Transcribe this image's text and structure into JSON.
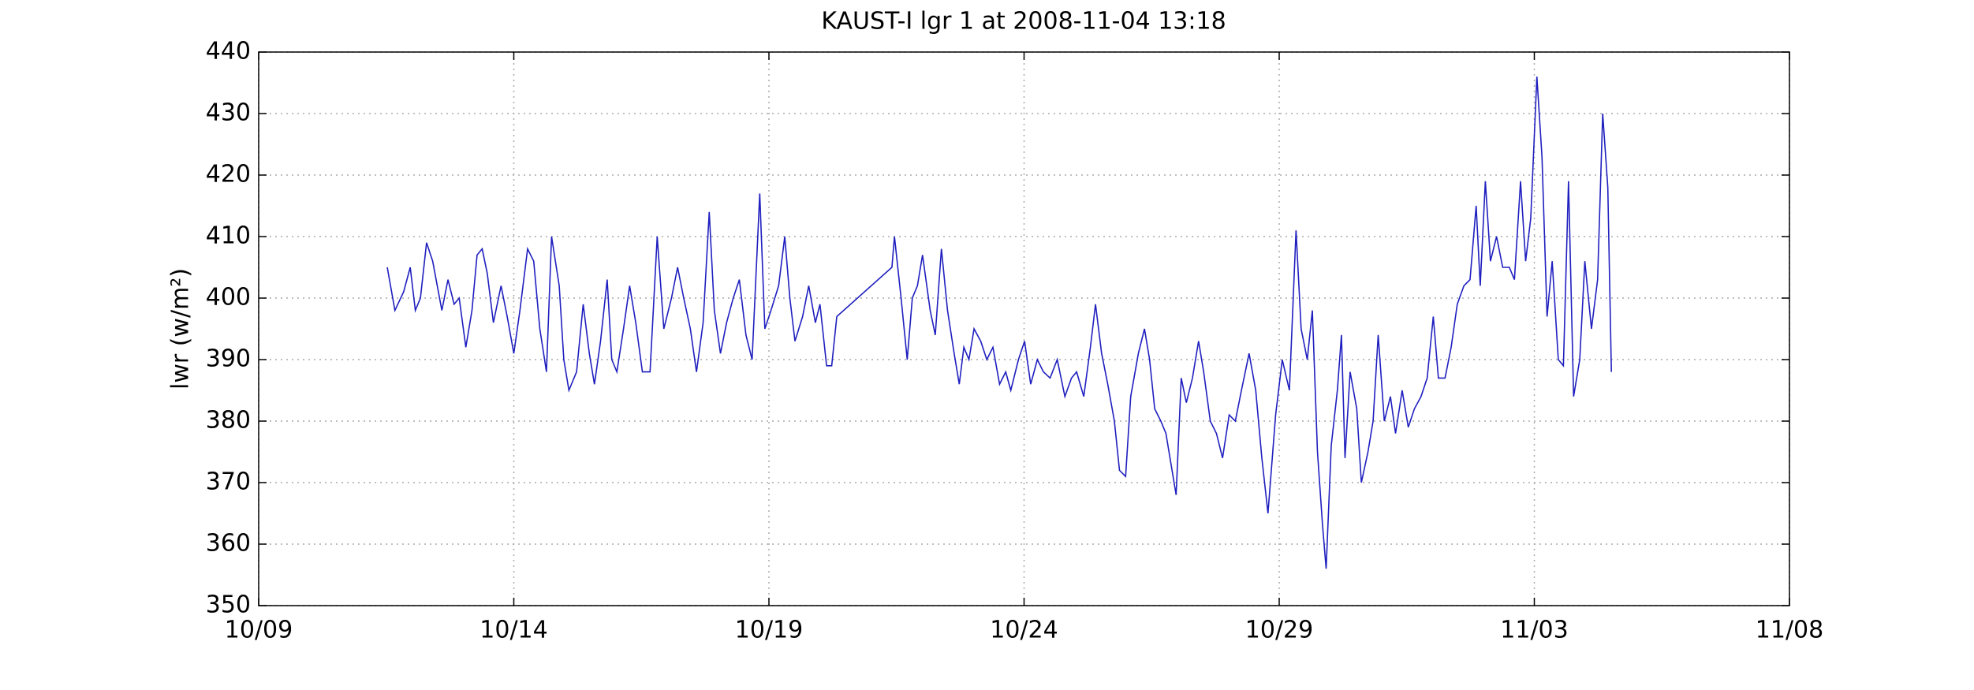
{
  "chart_data": {
    "type": "line",
    "title": "KAUST-I lgr 1 at 2008-11-04 13:18",
    "ylabel": "lwr (w/m²)",
    "x": [
      2.52,
      2.67,
      2.84,
      2.97,
      3.07,
      3.17,
      3.29,
      3.41,
      3.59,
      3.71,
      3.83,
      3.93,
      4.06,
      4.18,
      4.28,
      4.38,
      4.48,
      4.6,
      4.75,
      4.87,
      5.0,
      5.12,
      5.27,
      5.39,
      5.51,
      5.64,
      5.74,
      5.89,
      5.98,
      6.08,
      6.23,
      6.36,
      6.48,
      6.58,
      6.7,
      6.83,
      6.92,
      7.02,
      7.15,
      7.27,
      7.39,
      7.52,
      7.67,
      7.81,
      7.94,
      8.09,
      8.21,
      8.33,
      8.46,
      8.58,
      8.71,
      8.83,
      8.93,
      9.05,
      9.17,
      9.3,
      9.42,
      9.55,
      9.67,
      9.82,
      9.92,
      10.04,
      10.19,
      10.31,
      10.41,
      10.51,
      10.66,
      10.78,
      10.91,
      11.0,
      11.13,
      11.23,
      11.33,
      12.41,
      12.46,
      12.59,
      12.71,
      12.81,
      12.91,
      13.01,
      13.16,
      13.26,
      13.38,
      13.5,
      13.63,
      13.73,
      13.82,
      13.92,
      14.02,
      14.15,
      14.27,
      14.39,
      14.52,
      14.64,
      14.74,
      14.89,
      15.01,
      15.13,
      15.26,
      15.38,
      15.51,
      15.65,
      15.8,
      15.93,
      16.03,
      16.17,
      16.3,
      16.4,
      16.52,
      16.64,
      16.77,
      16.87,
      16.99,
      17.09,
      17.24,
      17.36,
      17.46,
      17.56,
      17.68,
      17.78,
      17.9,
      17.98,
      18.08,
      18.18,
      18.3,
      18.42,
      18.52,
      18.65,
      18.77,
      18.89,
      19.02,
      19.14,
      19.26,
      19.41,
      19.54,
      19.66,
      19.78,
      19.93,
      20.06,
      20.2,
      20.33,
      20.43,
      20.55,
      20.65,
      20.75,
      20.85,
      20.92,
      21.02,
      21.14,
      21.22,
      21.29,
      21.39,
      21.52,
      21.61,
      21.74,
      21.84,
      21.94,
      22.06,
      22.18,
      22.28,
      22.41,
      22.53,
      22.65,
      22.78,
      22.9,
      23.02,
      23.12,
      23.25,
      23.37,
      23.49,
      23.62,
      23.74,
      23.86,
      23.94,
      24.04,
      24.14,
      24.26,
      24.38,
      24.51,
      24.61,
      24.73,
      24.83,
      24.93,
      25.05,
      25.15,
      25.25,
      25.35,
      25.47,
      25.57,
      25.67,
      25.77,
      25.89,
      25.99,
      26.12,
      26.24,
      26.34,
      26.44,
      26.51
    ],
    "values": [
      405,
      398,
      401,
      405,
      398,
      400,
      409,
      406,
      398,
      403,
      399,
      400,
      392,
      398,
      407,
      408,
      404,
      396,
      402,
      397,
      391,
      398,
      408,
      406,
      395,
      388,
      410,
      402,
      390,
      385,
      388,
      399,
      391,
      386,
      393,
      403,
      390,
      388,
      395,
      402,
      396,
      388,
      388,
      410,
      395,
      400,
      405,
      400,
      395,
      388,
      396,
      414,
      398,
      391,
      396,
      400,
      403,
      394,
      390,
      417,
      395,
      398,
      402,
      410,
      400,
      393,
      397,
      402,
      396,
      399,
      389,
      389,
      397,
      405,
      410,
      400,
      390,
      400,
      402,
      407,
      398,
      394,
      408,
      398,
      391,
      386,
      392,
      390,
      395,
      393,
      390,
      392,
      386,
      388,
      385,
      390,
      393,
      386,
      390,
      388,
      387,
      390,
      384,
      387,
      388,
      384,
      392,
      399,
      391,
      386,
      380,
      372,
      371,
      384,
      391,
      395,
      390,
      382,
      380,
      378,
      372,
      368,
      387,
      383,
      387,
      393,
      388,
      380,
      378,
      374,
      381,
      380,
      385,
      391,
      385,
      374,
      365,
      381,
      390,
      385,
      411,
      395,
      390,
      398,
      375,
      363,
      356,
      376,
      385,
      394,
      374,
      388,
      382,
      370,
      375,
      380,
      394,
      380,
      384,
      378,
      385,
      379,
      382,
      384,
      387,
      397,
      387,
      387,
      392,
      399,
      402,
      403,
      415,
      402,
      419,
      406,
      410,
      405,
      405,
      403,
      419,
      406,
      413,
      436,
      423,
      397,
      406,
      390,
      389,
      419,
      384,
      390,
      406,
      395,
      403,
      430,
      418,
      388
    ],
    "color": "#1f1fbf",
    "xlim": [
      0,
      30
    ],
    "xticks": [
      {
        "value": 0,
        "label": "10/09"
      },
      {
        "value": 5,
        "label": "10/14"
      },
      {
        "value": 10,
        "label": "10/19"
      },
      {
        "value": 15,
        "label": "10/24"
      },
      {
        "value": 20,
        "label": "10/29"
      },
      {
        "value": 25,
        "label": "11/03"
      },
      {
        "value": 30,
        "label": "11/08"
      }
    ],
    "ylim": [
      350,
      440
    ],
    "yticks": [
      350,
      360,
      370,
      380,
      390,
      400,
      410,
      420,
      430,
      440
    ],
    "grid": true
  }
}
